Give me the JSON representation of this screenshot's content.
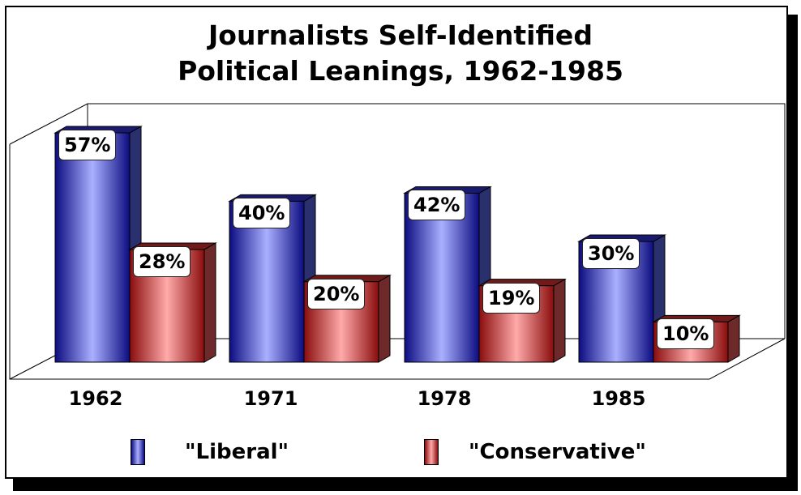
{
  "chart_data": {
    "type": "bar",
    "title": "Journalists Self-Identified Political Leanings, 1962-1985",
    "title_lines": [
      "Journalists Self-Identified",
      "Political Leanings, 1962-1985"
    ],
    "categories": [
      "1962",
      "1971",
      "1978",
      "1985"
    ],
    "series": [
      {
        "name": "\"Liberal\"",
        "values": [
          57,
          40,
          42,
          30
        ],
        "color": "#2a2aa8"
      },
      {
        "name": "\"Conservative\"",
        "values": [
          28,
          20,
          19,
          10
        ],
        "color": "#b03a3a"
      }
    ],
    "value_labels": {
      "liberal": [
        "57%",
        "40%",
        "42%",
        "30%"
      ],
      "conservative": [
        "28%",
        "20%",
        "19%",
        "10%"
      ]
    },
    "xlabel": "",
    "ylabel": "",
    "ylim": [
      0,
      60
    ],
    "grid": false,
    "legend_position": "bottom",
    "style": "3d-clustered-bar"
  },
  "legend": {
    "liberal": "\"Liberal\"",
    "conservative": "\"Conservative\""
  }
}
